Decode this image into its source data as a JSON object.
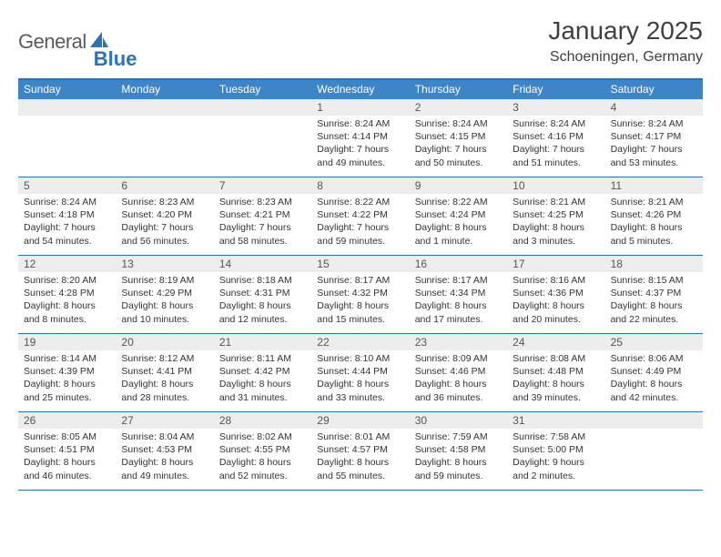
{
  "logo": {
    "word1": "General",
    "word2": "Blue"
  },
  "title": "January 2025",
  "location": "Schoeningen, Germany",
  "colors": {
    "header_bar": "#3d85c6",
    "rule": "#2b73b7",
    "daynum_bg": "#ededed",
    "text": "#333333",
    "logo_gray": "#5a5a5a"
  },
  "days_of_week": [
    "Sunday",
    "Monday",
    "Tuesday",
    "Wednesday",
    "Thursday",
    "Friday",
    "Saturday"
  ],
  "weeks": [
    [
      {
        "n": "",
        "sr": "",
        "ss": "",
        "dl": ""
      },
      {
        "n": "",
        "sr": "",
        "ss": "",
        "dl": ""
      },
      {
        "n": "",
        "sr": "",
        "ss": "",
        "dl": ""
      },
      {
        "n": "1",
        "sr": "Sunrise: 8:24 AM",
        "ss": "Sunset: 4:14 PM",
        "dl": "Daylight: 7 hours and 49 minutes."
      },
      {
        "n": "2",
        "sr": "Sunrise: 8:24 AM",
        "ss": "Sunset: 4:15 PM",
        "dl": "Daylight: 7 hours and 50 minutes."
      },
      {
        "n": "3",
        "sr": "Sunrise: 8:24 AM",
        "ss": "Sunset: 4:16 PM",
        "dl": "Daylight: 7 hours and 51 minutes."
      },
      {
        "n": "4",
        "sr": "Sunrise: 8:24 AM",
        "ss": "Sunset: 4:17 PM",
        "dl": "Daylight: 7 hours and 53 minutes."
      }
    ],
    [
      {
        "n": "5",
        "sr": "Sunrise: 8:24 AM",
        "ss": "Sunset: 4:18 PM",
        "dl": "Daylight: 7 hours and 54 minutes."
      },
      {
        "n": "6",
        "sr": "Sunrise: 8:23 AM",
        "ss": "Sunset: 4:20 PM",
        "dl": "Daylight: 7 hours and 56 minutes."
      },
      {
        "n": "7",
        "sr": "Sunrise: 8:23 AM",
        "ss": "Sunset: 4:21 PM",
        "dl": "Daylight: 7 hours and 58 minutes."
      },
      {
        "n": "8",
        "sr": "Sunrise: 8:22 AM",
        "ss": "Sunset: 4:22 PM",
        "dl": "Daylight: 7 hours and 59 minutes."
      },
      {
        "n": "9",
        "sr": "Sunrise: 8:22 AM",
        "ss": "Sunset: 4:24 PM",
        "dl": "Daylight: 8 hours and 1 minute."
      },
      {
        "n": "10",
        "sr": "Sunrise: 8:21 AM",
        "ss": "Sunset: 4:25 PM",
        "dl": "Daylight: 8 hours and 3 minutes."
      },
      {
        "n": "11",
        "sr": "Sunrise: 8:21 AM",
        "ss": "Sunset: 4:26 PM",
        "dl": "Daylight: 8 hours and 5 minutes."
      }
    ],
    [
      {
        "n": "12",
        "sr": "Sunrise: 8:20 AM",
        "ss": "Sunset: 4:28 PM",
        "dl": "Daylight: 8 hours and 8 minutes."
      },
      {
        "n": "13",
        "sr": "Sunrise: 8:19 AM",
        "ss": "Sunset: 4:29 PM",
        "dl": "Daylight: 8 hours and 10 minutes."
      },
      {
        "n": "14",
        "sr": "Sunrise: 8:18 AM",
        "ss": "Sunset: 4:31 PM",
        "dl": "Daylight: 8 hours and 12 minutes."
      },
      {
        "n": "15",
        "sr": "Sunrise: 8:17 AM",
        "ss": "Sunset: 4:32 PM",
        "dl": "Daylight: 8 hours and 15 minutes."
      },
      {
        "n": "16",
        "sr": "Sunrise: 8:17 AM",
        "ss": "Sunset: 4:34 PM",
        "dl": "Daylight: 8 hours and 17 minutes."
      },
      {
        "n": "17",
        "sr": "Sunrise: 8:16 AM",
        "ss": "Sunset: 4:36 PM",
        "dl": "Daylight: 8 hours and 20 minutes."
      },
      {
        "n": "18",
        "sr": "Sunrise: 8:15 AM",
        "ss": "Sunset: 4:37 PM",
        "dl": "Daylight: 8 hours and 22 minutes."
      }
    ],
    [
      {
        "n": "19",
        "sr": "Sunrise: 8:14 AM",
        "ss": "Sunset: 4:39 PM",
        "dl": "Daylight: 8 hours and 25 minutes."
      },
      {
        "n": "20",
        "sr": "Sunrise: 8:12 AM",
        "ss": "Sunset: 4:41 PM",
        "dl": "Daylight: 8 hours and 28 minutes."
      },
      {
        "n": "21",
        "sr": "Sunrise: 8:11 AM",
        "ss": "Sunset: 4:42 PM",
        "dl": "Daylight: 8 hours and 31 minutes."
      },
      {
        "n": "22",
        "sr": "Sunrise: 8:10 AM",
        "ss": "Sunset: 4:44 PM",
        "dl": "Daylight: 8 hours and 33 minutes."
      },
      {
        "n": "23",
        "sr": "Sunrise: 8:09 AM",
        "ss": "Sunset: 4:46 PM",
        "dl": "Daylight: 8 hours and 36 minutes."
      },
      {
        "n": "24",
        "sr": "Sunrise: 8:08 AM",
        "ss": "Sunset: 4:48 PM",
        "dl": "Daylight: 8 hours and 39 minutes."
      },
      {
        "n": "25",
        "sr": "Sunrise: 8:06 AM",
        "ss": "Sunset: 4:49 PM",
        "dl": "Daylight: 8 hours and 42 minutes."
      }
    ],
    [
      {
        "n": "26",
        "sr": "Sunrise: 8:05 AM",
        "ss": "Sunset: 4:51 PM",
        "dl": "Daylight: 8 hours and 46 minutes."
      },
      {
        "n": "27",
        "sr": "Sunrise: 8:04 AM",
        "ss": "Sunset: 4:53 PM",
        "dl": "Daylight: 8 hours and 49 minutes."
      },
      {
        "n": "28",
        "sr": "Sunrise: 8:02 AM",
        "ss": "Sunset: 4:55 PM",
        "dl": "Daylight: 8 hours and 52 minutes."
      },
      {
        "n": "29",
        "sr": "Sunrise: 8:01 AM",
        "ss": "Sunset: 4:57 PM",
        "dl": "Daylight: 8 hours and 55 minutes."
      },
      {
        "n": "30",
        "sr": "Sunrise: 7:59 AM",
        "ss": "Sunset: 4:58 PM",
        "dl": "Daylight: 8 hours and 59 minutes."
      },
      {
        "n": "31",
        "sr": "Sunrise: 7:58 AM",
        "ss": "Sunset: 5:00 PM",
        "dl": "Daylight: 9 hours and 2 minutes."
      },
      {
        "n": "",
        "sr": "",
        "ss": "",
        "dl": ""
      }
    ]
  ]
}
